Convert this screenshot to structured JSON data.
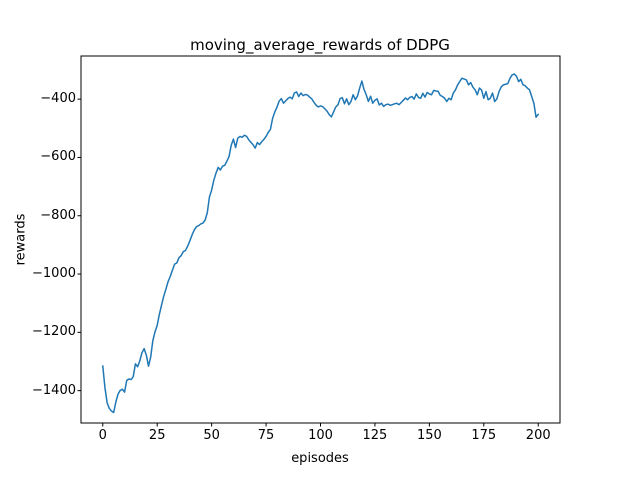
{
  "chart_data": {
    "type": "line",
    "title": "moving_average_rewards of DDPG",
    "xlabel": "episodes",
    "ylabel": "rewards",
    "x_ticks": [
      0,
      25,
      50,
      75,
      100,
      125,
      150,
      175,
      200
    ],
    "y_ticks": [
      -400,
      -600,
      -800,
      -1000,
      -1200,
      -1400
    ],
    "xlim": [
      -10,
      210
    ],
    "ylim": [
      -1511,
      -252
    ],
    "grid": false,
    "line_color": "#1f77b4",
    "spine_color": "#000000",
    "series": [
      {
        "name": "moving_average_rewards",
        "x_start": 0,
        "x_step": 1,
        "values": [
          -1315,
          -1390,
          -1442,
          -1461,
          -1470,
          -1475,
          -1439,
          -1412,
          -1399,
          -1395,
          -1405,
          -1365,
          -1360,
          -1362,
          -1352,
          -1308,
          -1318,
          -1298,
          -1270,
          -1256,
          -1278,
          -1316,
          -1285,
          -1228,
          -1198,
          -1176,
          -1138,
          -1106,
          -1076,
          -1052,
          -1026,
          -1008,
          -986,
          -966,
          -962,
          -944,
          -937,
          -923,
          -919,
          -904,
          -886,
          -866,
          -849,
          -838,
          -834,
          -828,
          -825,
          -815,
          -790,
          -735,
          -712,
          -678,
          -654,
          -634,
          -643,
          -630,
          -627,
          -613,
          -597,
          -558,
          -537,
          -566,
          -534,
          -528,
          -531,
          -524,
          -527,
          -539,
          -548,
          -556,
          -568,
          -549,
          -556,
          -546,
          -538,
          -528,
          -514,
          -504,
          -466,
          -444,
          -428,
          -407,
          -398,
          -414,
          -406,
          -398,
          -393,
          -399,
          -379,
          -375,
          -391,
          -379,
          -388,
          -384,
          -386,
          -393,
          -399,
          -411,
          -421,
          -427,
          -423,
          -426,
          -433,
          -441,
          -453,
          -461,
          -444,
          -427,
          -420,
          -398,
          -395,
          -416,
          -399,
          -419,
          -408,
          -385,
          -402,
          -389,
          -362,
          -338,
          -367,
          -385,
          -408,
          -390,
          -414,
          -404,
          -399,
          -420,
          -414,
          -425,
          -419,
          -417,
          -421,
          -419,
          -416,
          -414,
          -419,
          -412,
          -404,
          -396,
          -402,
          -394,
          -391,
          -400,
          -382,
          -394,
          -397,
          -380,
          -393,
          -377,
          -382,
          -385,
          -370,
          -372,
          -373,
          -387,
          -391,
          -397,
          -408,
          -397,
          -402,
          -379,
          -368,
          -351,
          -339,
          -328,
          -331,
          -334,
          -351,
          -343,
          -359,
          -368,
          -385,
          -362,
          -369,
          -397,
          -374,
          -402,
          -397,
          -379,
          -408,
          -399,
          -374,
          -358,
          -351,
          -349,
          -347,
          -329,
          -317,
          -314,
          -321,
          -340,
          -332,
          -351,
          -354,
          -362,
          -368,
          -391,
          -414,
          -462,
          -452
        ]
      }
    ]
  }
}
